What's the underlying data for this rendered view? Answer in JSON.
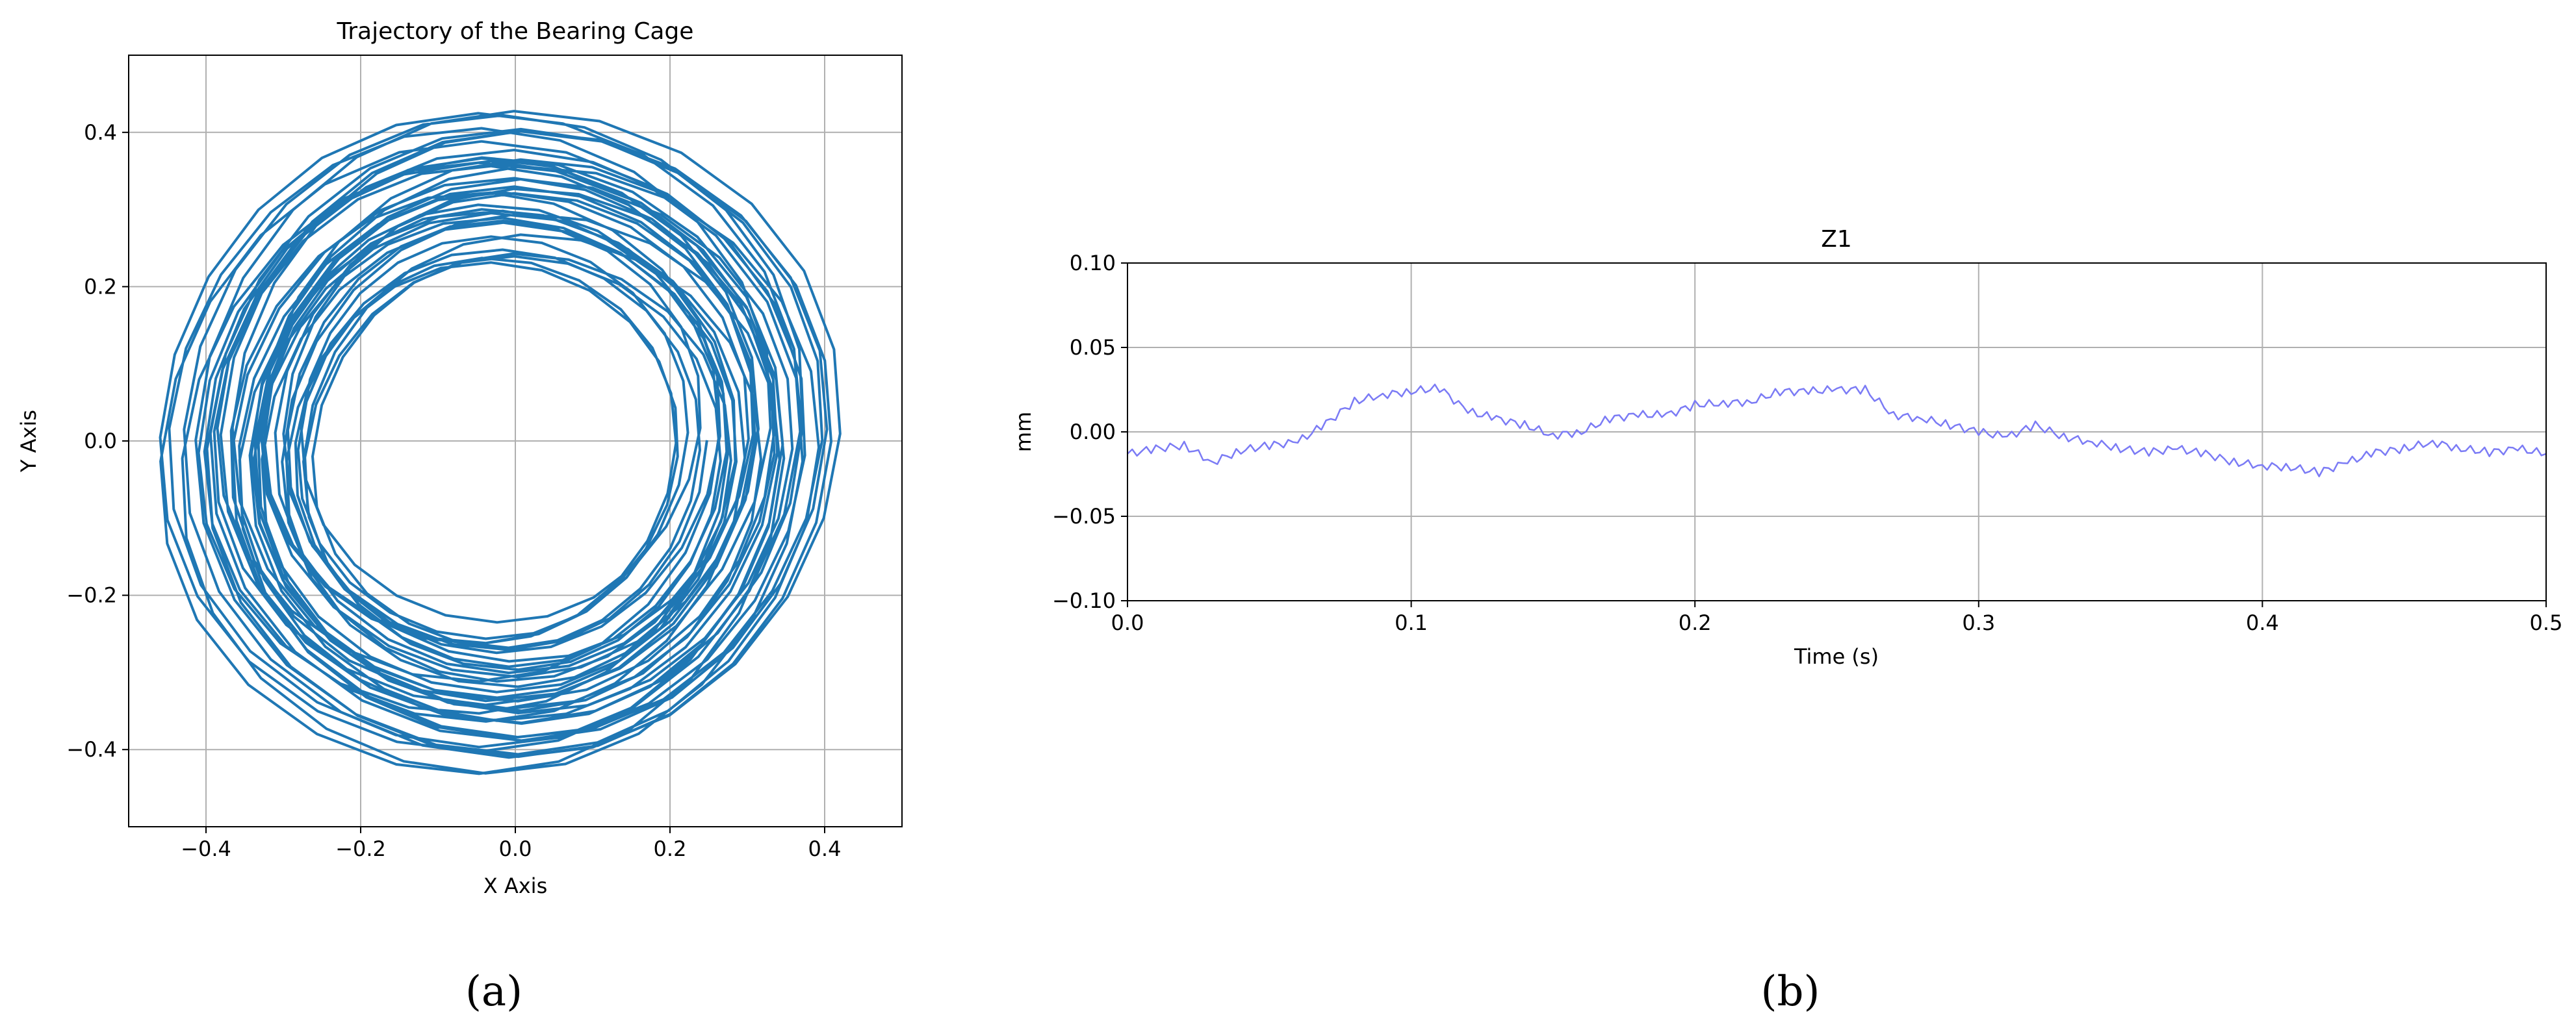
{
  "chart_data": [
    {
      "type": "line",
      "title": "Trajectory of the Bearing Cage",
      "xlabel": "X Axis",
      "ylabel": "Y Axis",
      "xlim": [
        -0.5,
        0.5
      ],
      "ylim": [
        -0.5,
        0.5
      ],
      "xticks": [
        -0.4,
        -0.2,
        0.0,
        0.2,
        0.4
      ],
      "xtick_labels": [
        "−0.4",
        "−0.2",
        "0.0",
        "0.2",
        "0.4"
      ],
      "yticks": [
        -0.4,
        -0.2,
        0.0,
        0.2,
        0.4
      ],
      "ytick_labels": [
        "−0.4",
        "−0.2",
        "0.0",
        "0.2",
        "0.4"
      ],
      "grid": true,
      "legend": false,
      "line_color": "#1f77b4",
      "trajectory": {
        "center": [
          -0.02,
          -0.005
        ],
        "radius_min": 0.23,
        "radius_max": 0.43,
        "revolutions": 38
      },
      "caption": "(a)"
    },
    {
      "type": "line",
      "title": "Z1",
      "xlabel": "Time (s)",
      "ylabel": "mm",
      "xlim": [
        0.0,
        0.5
      ],
      "ylim": [
        -0.1,
        0.1
      ],
      "xticks": [
        0.0,
        0.1,
        0.2,
        0.3,
        0.4,
        0.5
      ],
      "xtick_labels": [
        "0.0",
        "0.1",
        "0.2",
        "0.3",
        "0.4",
        "0.5"
      ],
      "yticks": [
        -0.1,
        -0.05,
        0.0,
        0.05,
        0.1
      ],
      "ytick_labels": [
        "−0.10",
        "−0.05",
        "0.00",
        "0.05",
        "0.10"
      ],
      "grid": true,
      "legend": false,
      "line_color": "#7b7bf5",
      "series": [
        {
          "x": [
            0.0,
            0.01,
            0.02,
            0.03,
            0.04,
            0.05,
            0.06,
            0.07,
            0.08,
            0.09,
            0.1,
            0.11,
            0.12,
            0.13,
            0.14,
            0.15,
            0.16,
            0.17,
            0.18,
            0.19,
            0.2,
            0.21,
            0.22,
            0.23,
            0.24,
            0.25,
            0.26,
            0.27,
            0.28,
            0.29,
            0.3,
            0.31,
            0.32,
            0.33,
            0.34,
            0.35,
            0.36,
            0.37,
            0.38,
            0.39,
            0.4,
            0.41,
            0.42,
            0.43,
            0.44,
            0.45,
            0.46,
            0.47,
            0.48,
            0.49,
            0.5
          ],
          "values": [
            -0.013,
            -0.01,
            -0.008,
            -0.018,
            -0.011,
            -0.008,
            -0.006,
            0.005,
            0.018,
            0.022,
            0.024,
            0.026,
            0.012,
            0.008,
            0.004,
            -0.002,
            0.0,
            0.008,
            0.01,
            0.01,
            0.016,
            0.017,
            0.018,
            0.024,
            0.024,
            0.025,
            0.025,
            0.01,
            0.008,
            0.004,
            0.0,
            -0.003,
            0.004,
            -0.003,
            -0.006,
            -0.01,
            -0.012,
            -0.01,
            -0.013,
            -0.018,
            -0.02,
            -0.021,
            -0.024,
            -0.018,
            -0.012,
            -0.01,
            -0.006,
            -0.01,
            -0.012,
            -0.01,
            -0.013
          ]
        }
      ],
      "caption": "(b)"
    }
  ]
}
